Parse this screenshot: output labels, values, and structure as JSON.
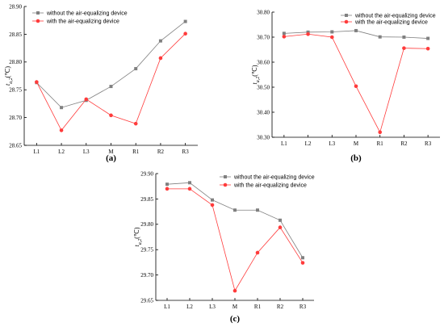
{
  "chart_data": [
    {
      "type": "line",
      "panel": "(a)",
      "ylabel": "t_{a,2}(℃)",
      "categories": [
        "L1",
        "L2",
        "L3",
        "M",
        "R1",
        "R2",
        "R3"
      ],
      "ylim": [
        28.65,
        28.9
      ],
      "yticks": [
        "28.65",
        "28.70",
        "28.75",
        "28.80",
        "28.85",
        "28.90"
      ],
      "legend_position": "top-left",
      "series": [
        {
          "name": "without the air-equalizing device",
          "color": "#808080",
          "marker": "square",
          "values": [
            28.763,
            28.718,
            28.731,
            28.756,
            28.788,
            28.838,
            28.873
          ]
        },
        {
          "name": "with the air-equalizing device",
          "color": "#ff3b3b",
          "marker": "circle",
          "values": [
            28.764,
            28.677,
            28.733,
            28.704,
            28.689,
            28.807,
            28.851
          ]
        }
      ]
    },
    {
      "type": "line",
      "panel": "(b)",
      "ylabel": "t_{a,2}(℃)",
      "categories": [
        "L1",
        "L2",
        "L3",
        "M",
        "R1",
        "R2",
        "R3"
      ],
      "ylim": [
        30.3,
        30.8
      ],
      "yticks": [
        "30.30",
        "30.40",
        "30.50",
        "30.60",
        "30.70",
        "30.80"
      ],
      "legend_position": "top-right",
      "series": [
        {
          "name": "without the air-equalizing device",
          "color": "#808080",
          "marker": "square",
          "values": [
            30.715,
            30.72,
            30.721,
            30.726,
            30.701,
            30.7,
            30.695
          ]
        },
        {
          "name": "with the air-equalizing device",
          "color": "#ff3b3b",
          "marker": "circle",
          "values": [
            30.702,
            30.712,
            30.7,
            30.504,
            30.32,
            30.656,
            30.654
          ]
        }
      ]
    },
    {
      "type": "line",
      "panel": "(c)",
      "ylabel": "t_{a,2}(℃)",
      "categories": [
        "L1",
        "L2",
        "L3",
        "M",
        "R1",
        "R2",
        "R3"
      ],
      "ylim": [
        29.65,
        29.9
      ],
      "yticks": [
        "29.65",
        "29.70",
        "29.75",
        "29.80",
        "29.85",
        "29.90"
      ],
      "legend_position": "top-right",
      "series": [
        {
          "name": "without the air-equalizing device",
          "color": "#808080",
          "marker": "square",
          "values": [
            29.879,
            29.882,
            29.848,
            29.828,
            29.828,
            29.808,
            29.734
          ]
        },
        {
          "name": "with the air-equalizing device",
          "color": "#ff3b3b",
          "marker": "circle",
          "values": [
            29.87,
            29.87,
            29.838,
            29.669,
            29.744,
            29.794,
            29.724
          ]
        }
      ]
    }
  ]
}
